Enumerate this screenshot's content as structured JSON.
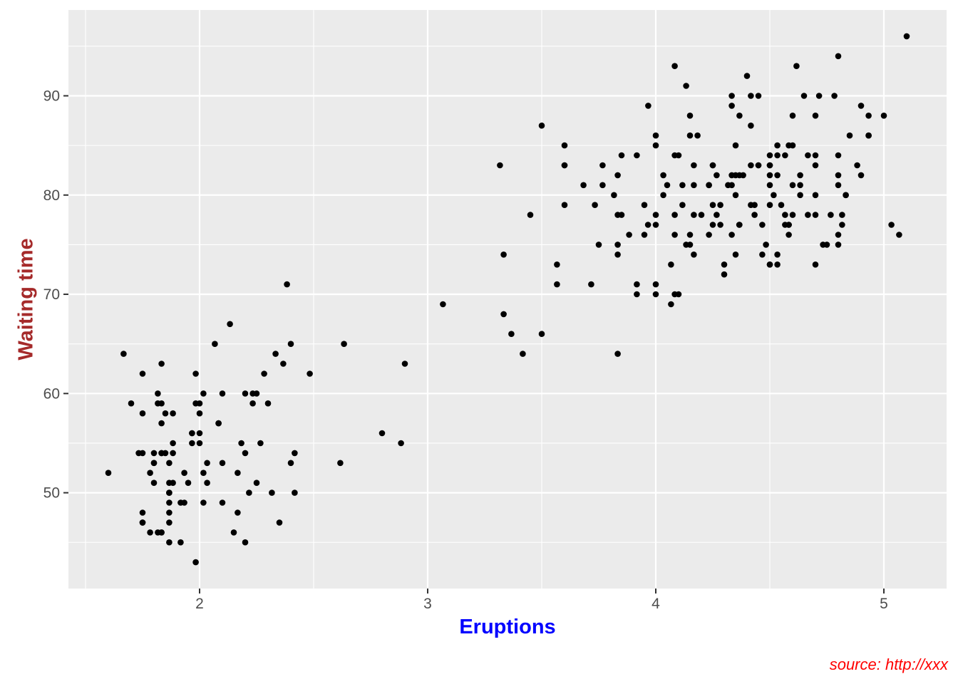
{
  "chart_data": {
    "type": "scatter",
    "title": "",
    "xlabel": "Eruptions",
    "ylabel": "Waiting time",
    "caption": "source: http://xxx",
    "xlim": [
      1.425,
      5.275
    ],
    "ylim": [
      40.35,
      98.65
    ],
    "x_major_ticks": [
      2,
      3,
      4,
      5
    ],
    "x_minor_ticks": [
      1.5,
      2.5,
      3.5,
      4.5
    ],
    "y_major_ticks": [
      50,
      60,
      70,
      80,
      90
    ],
    "y_minor_ticks": [
      45,
      55,
      65,
      75,
      85,
      95
    ],
    "grid": "major and minor, white on gray panel",
    "legend": "none",
    "style": {
      "figure_bg": "#FFFFFF",
      "panel_bg": "#EBEBEB",
      "grid_color": "#FFFFFF",
      "point_color": "#000000",
      "point_radius": 4.3,
      "tick_label_color": "#4D4D4D",
      "tick_mark_color": "#333333",
      "xlabel_color": "#0000FF",
      "ylabel_color": "#A52A2A",
      "caption_color": "#FF0000"
    },
    "points": [
      [
        3.6,
        79
      ],
      [
        1.8,
        54
      ],
      [
        3.333,
        74
      ],
      [
        2.283,
        62
      ],
      [
        4.533,
        85
      ],
      [
        2.883,
        55
      ],
      [
        4.7,
        88
      ],
      [
        3.6,
        85
      ],
      [
        1.95,
        51
      ],
      [
        4.35,
        85
      ],
      [
        1.833,
        54
      ],
      [
        3.917,
        84
      ],
      [
        4.2,
        78
      ],
      [
        1.75,
        47
      ],
      [
        4.7,
        83
      ],
      [
        2.167,
        52
      ],
      [
        1.75,
        62
      ],
      [
        4.8,
        84
      ],
      [
        1.6,
        52
      ],
      [
        4.25,
        79
      ],
      [
        1.8,
        51
      ],
      [
        1.75,
        47
      ],
      [
        3.45,
        78
      ],
      [
        3.067,
        69
      ],
      [
        4.533,
        74
      ],
      [
        3.6,
        83
      ],
      [
        1.967,
        55
      ],
      [
        4.083,
        76
      ],
      [
        3.85,
        78
      ],
      [
        4.433,
        79
      ],
      [
        4.3,
        73
      ],
      [
        4.467,
        77
      ],
      [
        3.367,
        66
      ],
      [
        4.033,
        80
      ],
      [
        3.833,
        74
      ],
      [
        2.017,
        52
      ],
      [
        1.867,
        48
      ],
      [
        4.833,
        80
      ],
      [
        1.833,
        59
      ],
      [
        4.783,
        90
      ],
      [
        4.35,
        80
      ],
      [
        1.883,
        58
      ],
      [
        4.567,
        84
      ],
      [
        1.75,
        58
      ],
      [
        4.533,
        73
      ],
      [
        3.317,
        83
      ],
      [
        3.833,
        64
      ],
      [
        2.1,
        53
      ],
      [
        4.633,
        82
      ],
      [
        2.0,
        59
      ],
      [
        4.8,
        75
      ],
      [
        4.716,
        90
      ],
      [
        1.833,
        54
      ],
      [
        4.833,
        80
      ],
      [
        1.733,
        54
      ],
      [
        4.883,
        83
      ],
      [
        3.717,
        71
      ],
      [
        1.667,
        64
      ],
      [
        4.567,
        77
      ],
      [
        4.317,
        81
      ],
      [
        2.233,
        59
      ],
      [
        4.5,
        84
      ],
      [
        1.75,
        48
      ],
      [
        4.8,
        82
      ],
      [
        1.817,
        60
      ],
      [
        4.4,
        92
      ],
      [
        4.167,
        78
      ],
      [
        4.7,
        78
      ],
      [
        2.067,
        65
      ],
      [
        4.7,
        73
      ],
      [
        4.033,
        82
      ],
      [
        1.967,
        56
      ],
      [
        4.5,
        79
      ],
      [
        4.0,
        71
      ],
      [
        1.983,
        62
      ],
      [
        5.067,
        76
      ],
      [
        2.017,
        60
      ],
      [
        4.567,
        78
      ],
      [
        3.883,
        76
      ],
      [
        3.6,
        83
      ],
      [
        4.133,
        75
      ],
      [
        4.333,
        82
      ],
      [
        4.1,
        70
      ],
      [
        2.633,
        65
      ],
      [
        4.067,
        73
      ],
      [
        4.933,
        88
      ],
      [
        3.95,
        76
      ],
      [
        4.517,
        80
      ],
      [
        2.167,
        48
      ],
      [
        4.0,
        86
      ],
      [
        2.2,
        60
      ],
      [
        4.333,
        90
      ],
      [
        1.867,
        50
      ],
      [
        4.817,
        78
      ],
      [
        1.833,
        63
      ],
      [
        4.3,
        72
      ],
      [
        4.667,
        84
      ],
      [
        3.75,
        75
      ],
      [
        1.867,
        51
      ],
      [
        4.9,
        82
      ],
      [
        2.483,
        62
      ],
      [
        4.367,
        88
      ],
      [
        2.1,
        49
      ],
      [
        4.5,
        83
      ],
      [
        4.05,
        81
      ],
      [
        1.867,
        47
      ],
      [
        4.7,
        84
      ],
      [
        1.783,
        52
      ],
      [
        4.85,
        86
      ],
      [
        3.683,
        81
      ],
      [
        4.733,
        75
      ],
      [
        2.3,
        59
      ],
      [
        4.9,
        89
      ],
      [
        4.417,
        79
      ],
      [
        1.7,
        59
      ],
      [
        4.633,
        81
      ],
      [
        2.317,
        50
      ],
      [
        4.6,
        85
      ],
      [
        1.817,
        59
      ],
      [
        4.417,
        87
      ],
      [
        2.617,
        53
      ],
      [
        4.067,
        69
      ],
      [
        4.25,
        77
      ],
      [
        1.967,
        56
      ],
      [
        4.6,
        88
      ],
      [
        3.767,
        81
      ],
      [
        1.917,
        45
      ],
      [
        4.5,
        82
      ],
      [
        2.267,
        55
      ],
      [
        4.65,
        90
      ],
      [
        1.867,
        45
      ],
      [
        4.167,
        83
      ],
      [
        2.8,
        56
      ],
      [
        4.333,
        89
      ],
      [
        1.833,
        46
      ],
      [
        4.383,
        82
      ],
      [
        1.883,
        51
      ],
      [
        4.933,
        86
      ],
      [
        2.033,
        53
      ],
      [
        3.733,
        79
      ],
      [
        4.233,
        81
      ],
      [
        2.233,
        60
      ],
      [
        4.533,
        82
      ],
      [
        4.817,
        77
      ],
      [
        4.333,
        76
      ],
      [
        1.983,
        59
      ],
      [
        4.633,
        80
      ],
      [
        2.017,
        49
      ],
      [
        5.1,
        96
      ],
      [
        1.8,
        53
      ],
      [
        5.033,
        77
      ],
      [
        4.0,
        77
      ],
      [
        2.4,
        65
      ],
      [
        4.6,
        81
      ],
      [
        3.567,
        71
      ],
      [
        4.0,
        70
      ],
      [
        4.5,
        81
      ],
      [
        4.083,
        93
      ],
      [
        1.8,
        53
      ],
      [
        3.967,
        89
      ],
      [
        2.2,
        45
      ],
      [
        4.15,
        86
      ],
      [
        2.0,
        58
      ],
      [
        3.833,
        78
      ],
      [
        3.5,
        66
      ],
      [
        4.583,
        76
      ],
      [
        2.367,
        63
      ],
      [
        5.0,
        88
      ],
      [
        1.933,
        52
      ],
      [
        4.617,
        93
      ],
      [
        1.917,
        49
      ],
      [
        2.083,
        57
      ],
      [
        4.583,
        77
      ],
      [
        3.333,
        68
      ],
      [
        4.167,
        81
      ],
      [
        4.333,
        81
      ],
      [
        4.5,
        73
      ],
      [
        2.417,
        50
      ],
      [
        4.0,
        85
      ],
      [
        4.167,
        74
      ],
      [
        1.883,
        55
      ],
      [
        4.583,
        77
      ],
      [
        4.25,
        83
      ],
      [
        3.767,
        83
      ],
      [
        2.033,
        51
      ],
      [
        4.433,
        78
      ],
      [
        4.083,
        84
      ],
      [
        1.833,
        46
      ],
      [
        4.417,
        83
      ],
      [
        2.183,
        55
      ],
      [
        4.8,
        81
      ],
      [
        1.833,
        57
      ],
      [
        4.8,
        76
      ],
      [
        4.1,
        84
      ],
      [
        3.966,
        77
      ],
      [
        4.233,
        81
      ],
      [
        3.5,
        87
      ],
      [
        4.366,
        77
      ],
      [
        2.25,
        51
      ],
      [
        4.667,
        78
      ],
      [
        2.1,
        60
      ],
      [
        4.35,
        82
      ],
      [
        4.133,
        91
      ],
      [
        1.867,
        53
      ],
      [
        4.6,
        78
      ],
      [
        1.783,
        46
      ],
      [
        4.367,
        77
      ],
      [
        3.85,
        84
      ],
      [
        1.933,
        49
      ],
      [
        4.5,
        83
      ],
      [
        2.383,
        71
      ],
      [
        4.7,
        80
      ],
      [
        1.867,
        49
      ],
      [
        3.833,
        75
      ],
      [
        3.417,
        64
      ],
      [
        4.233,
        76
      ],
      [
        2.4,
        53
      ],
      [
        4.8,
        94
      ],
      [
        2.0,
        55
      ],
      [
        4.15,
        76
      ],
      [
        1.867,
        50
      ],
      [
        4.267,
        82
      ],
      [
        1.75,
        54
      ],
      [
        4.483,
        75
      ],
      [
        4.0,
        78
      ],
      [
        4.117,
        79
      ],
      [
        4.083,
        78
      ],
      [
        4.267,
        78
      ],
      [
        3.917,
        70
      ],
      [
        4.55,
        79
      ],
      [
        4.083,
        70
      ],
      [
        2.417,
        54
      ],
      [
        4.183,
        86
      ],
      [
        2.217,
        50
      ],
      [
        4.45,
        90
      ],
      [
        1.883,
        54
      ],
      [
        1.85,
        54
      ],
      [
        4.283,
        77
      ],
      [
        3.95,
        79
      ],
      [
        2.333,
        64
      ],
      [
        4.15,
        75
      ],
      [
        2.35,
        47
      ],
      [
        4.933,
        86
      ],
      [
        2.9,
        63
      ],
      [
        4.583,
        85
      ],
      [
        3.833,
        82
      ],
      [
        2.083,
        57
      ],
      [
        4.367,
        82
      ],
      [
        2.133,
        67
      ],
      [
        4.35,
        74
      ],
      [
        2.2,
        54
      ],
      [
        4.45,
        83
      ],
      [
        3.567,
        73
      ],
      [
        4.5,
        73
      ],
      [
        4.15,
        88
      ],
      [
        3.817,
        80
      ],
      [
        3.917,
        71
      ],
      [
        4.45,
        83
      ],
      [
        2.0,
        56
      ],
      [
        4.283,
        79
      ],
      [
        4.767,
        78
      ],
      [
        4.533,
        84
      ],
      [
        1.85,
        58
      ],
      [
        4.25,
        83
      ],
      [
        1.983,
        43
      ],
      [
        2.25,
        60
      ],
      [
        4.75,
        75
      ],
      [
        4.117,
        81
      ],
      [
        2.15,
        46
      ],
      [
        4.417,
        90
      ],
      [
        1.817,
        46
      ],
      [
        4.467,
        74
      ]
    ]
  }
}
